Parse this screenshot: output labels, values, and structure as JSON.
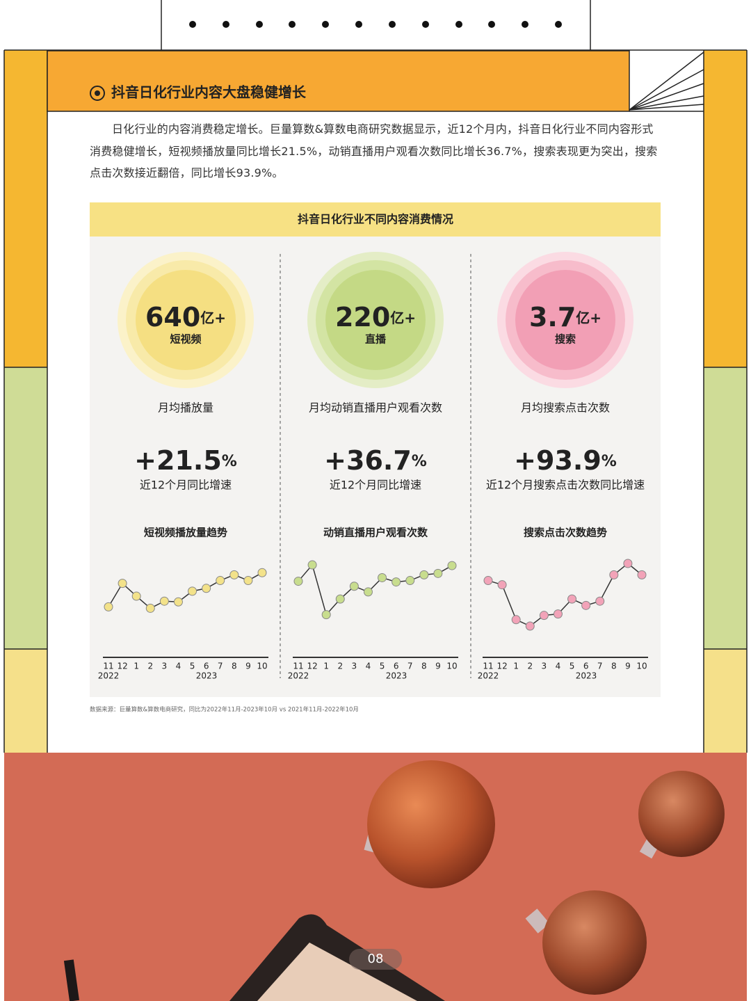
{
  "header": {
    "title": "抖音日化行业内容大盘稳健增长"
  },
  "intro": "日化行业的内容消费稳定增长。巨量算数&算数电商研究数据显示，近12个月内，抖音日化行业不同内容形式消费稳健增长，短视频播放量同比增长21.5%，动销直播用户观看次数同比增长36.7%，搜索表现更为突出，搜索点击次数接近翻倍，同比增长93.9%。",
  "panel": {
    "title": "抖音日化行业不同内容消费情况"
  },
  "columns": [
    {
      "value": "640",
      "unit": "亿+",
      "label": "短视频",
      "metric": "月均播放量",
      "growth": "+21.5",
      "growth_unit": "%",
      "growth_label": "近12个月同比增速"
    },
    {
      "value": "220",
      "unit": "亿+",
      "label": "直播",
      "metric": "月均动销直播用户观看次数",
      "growth": "+36.7",
      "growth_unit": "%",
      "growth_label": "近12个月同比增速"
    },
    {
      "value": "3.7",
      "unit": "亿+",
      "label": "搜索",
      "metric": "月均搜索点击次数",
      "growth": "+93.9",
      "growth_unit": "%",
      "growth_label": "近12个月搜索点击次数同比增速"
    }
  ],
  "chart_data": [
    {
      "type": "line",
      "title": "短视频播放量趋势",
      "categories": [
        "11",
        "12",
        "1",
        "2",
        "3",
        "4",
        "5",
        "6",
        "7",
        "8",
        "9",
        "10"
      ],
      "year_labels": [
        "2022",
        "2023"
      ],
      "values": [
        27,
        60,
        42,
        25,
        35,
        34,
        49,
        53,
        64,
        72,
        64,
        75
      ],
      "color": "#f3e28a"
    },
    {
      "type": "line",
      "title": "动销直播用户观看次数",
      "categories": [
        "11",
        "12",
        "1",
        "2",
        "3",
        "4",
        "5",
        "6",
        "7",
        "8",
        "9",
        "10"
      ],
      "year_labels": [
        "2022",
        "2023"
      ],
      "values": [
        63,
        86,
        16,
        38,
        56,
        48,
        68,
        62,
        64,
        72,
        74,
        85
      ],
      "color": "#c8dd8e"
    },
    {
      "type": "line",
      "title": "搜索点击次数趋势",
      "categories": [
        "11",
        "12",
        "1",
        "2",
        "3",
        "4",
        "5",
        "6",
        "7",
        "8",
        "9",
        "10"
      ],
      "year_labels": [
        "2022",
        "2023"
      ],
      "values": [
        64,
        58,
        9,
        0,
        15,
        17,
        38,
        29,
        35,
        72,
        88,
        72
      ],
      "color": "#f2a3b8"
    }
  ],
  "source": "数据来源：巨量算数&算数电商研究，同比为2022年11月-2023年10月 vs 2021年11月-2022年10月",
  "page_number": "08"
}
